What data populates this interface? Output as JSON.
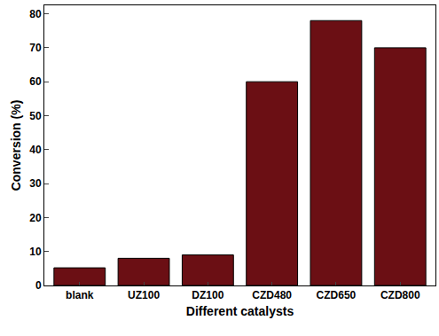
{
  "chart_data": {
    "type": "bar",
    "xlabel": "Different catalysts",
    "ylabel": "Conversion (%)",
    "categories": [
      "blank",
      "UZ100",
      "DZ100",
      "CZD480",
      "CZD650",
      "CZD800"
    ],
    "values": [
      5.2,
      8,
      9,
      60,
      78,
      70
    ],
    "color": "#6b0f14",
    "ylim": [
      0,
      82.5
    ],
    "yticks": [
      0,
      10,
      20,
      30,
      40,
      50,
      60,
      70,
      80
    ],
    "grid": false
  }
}
